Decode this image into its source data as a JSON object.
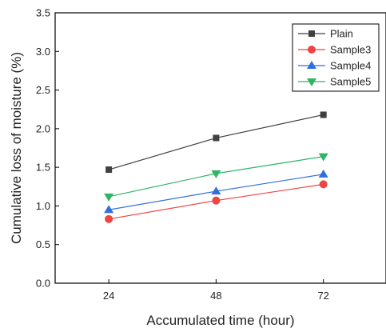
{
  "chart_data": {
    "type": "line",
    "xlabel": "Accumulated time (hour)",
    "ylabel": "Cumulative loss of moisture (%)",
    "x": [
      24,
      48,
      72
    ],
    "x_tick_labels": [
      "24",
      "48",
      "72"
    ],
    "ylim": [
      0.0,
      3.5
    ],
    "y_ticks": [
      0.0,
      0.5,
      1.0,
      1.5,
      2.0,
      2.5,
      3.0,
      3.5
    ],
    "y_tick_labels": [
      "0.0",
      "0.5",
      "1.0",
      "1.5",
      "2.0",
      "2.5",
      "3.0",
      "3.5"
    ],
    "grid": false,
    "legend_position": "top-right",
    "series": [
      {
        "name": "Plain",
        "marker": "square",
        "color": "#404040",
        "values": [
          1.47,
          1.88,
          2.18
        ]
      },
      {
        "name": "Sample3",
        "marker": "circle",
        "color": "#ef4444",
        "values": [
          0.83,
          1.07,
          1.28
        ]
      },
      {
        "name": "Sample4",
        "marker": "triangle-up",
        "color": "#2f6fe0",
        "values": [
          0.95,
          1.19,
          1.41
        ]
      },
      {
        "name": "Sample5",
        "marker": "triangle-down",
        "color": "#2fb565",
        "values": [
          1.12,
          1.42,
          1.64
        ]
      }
    ]
  }
}
